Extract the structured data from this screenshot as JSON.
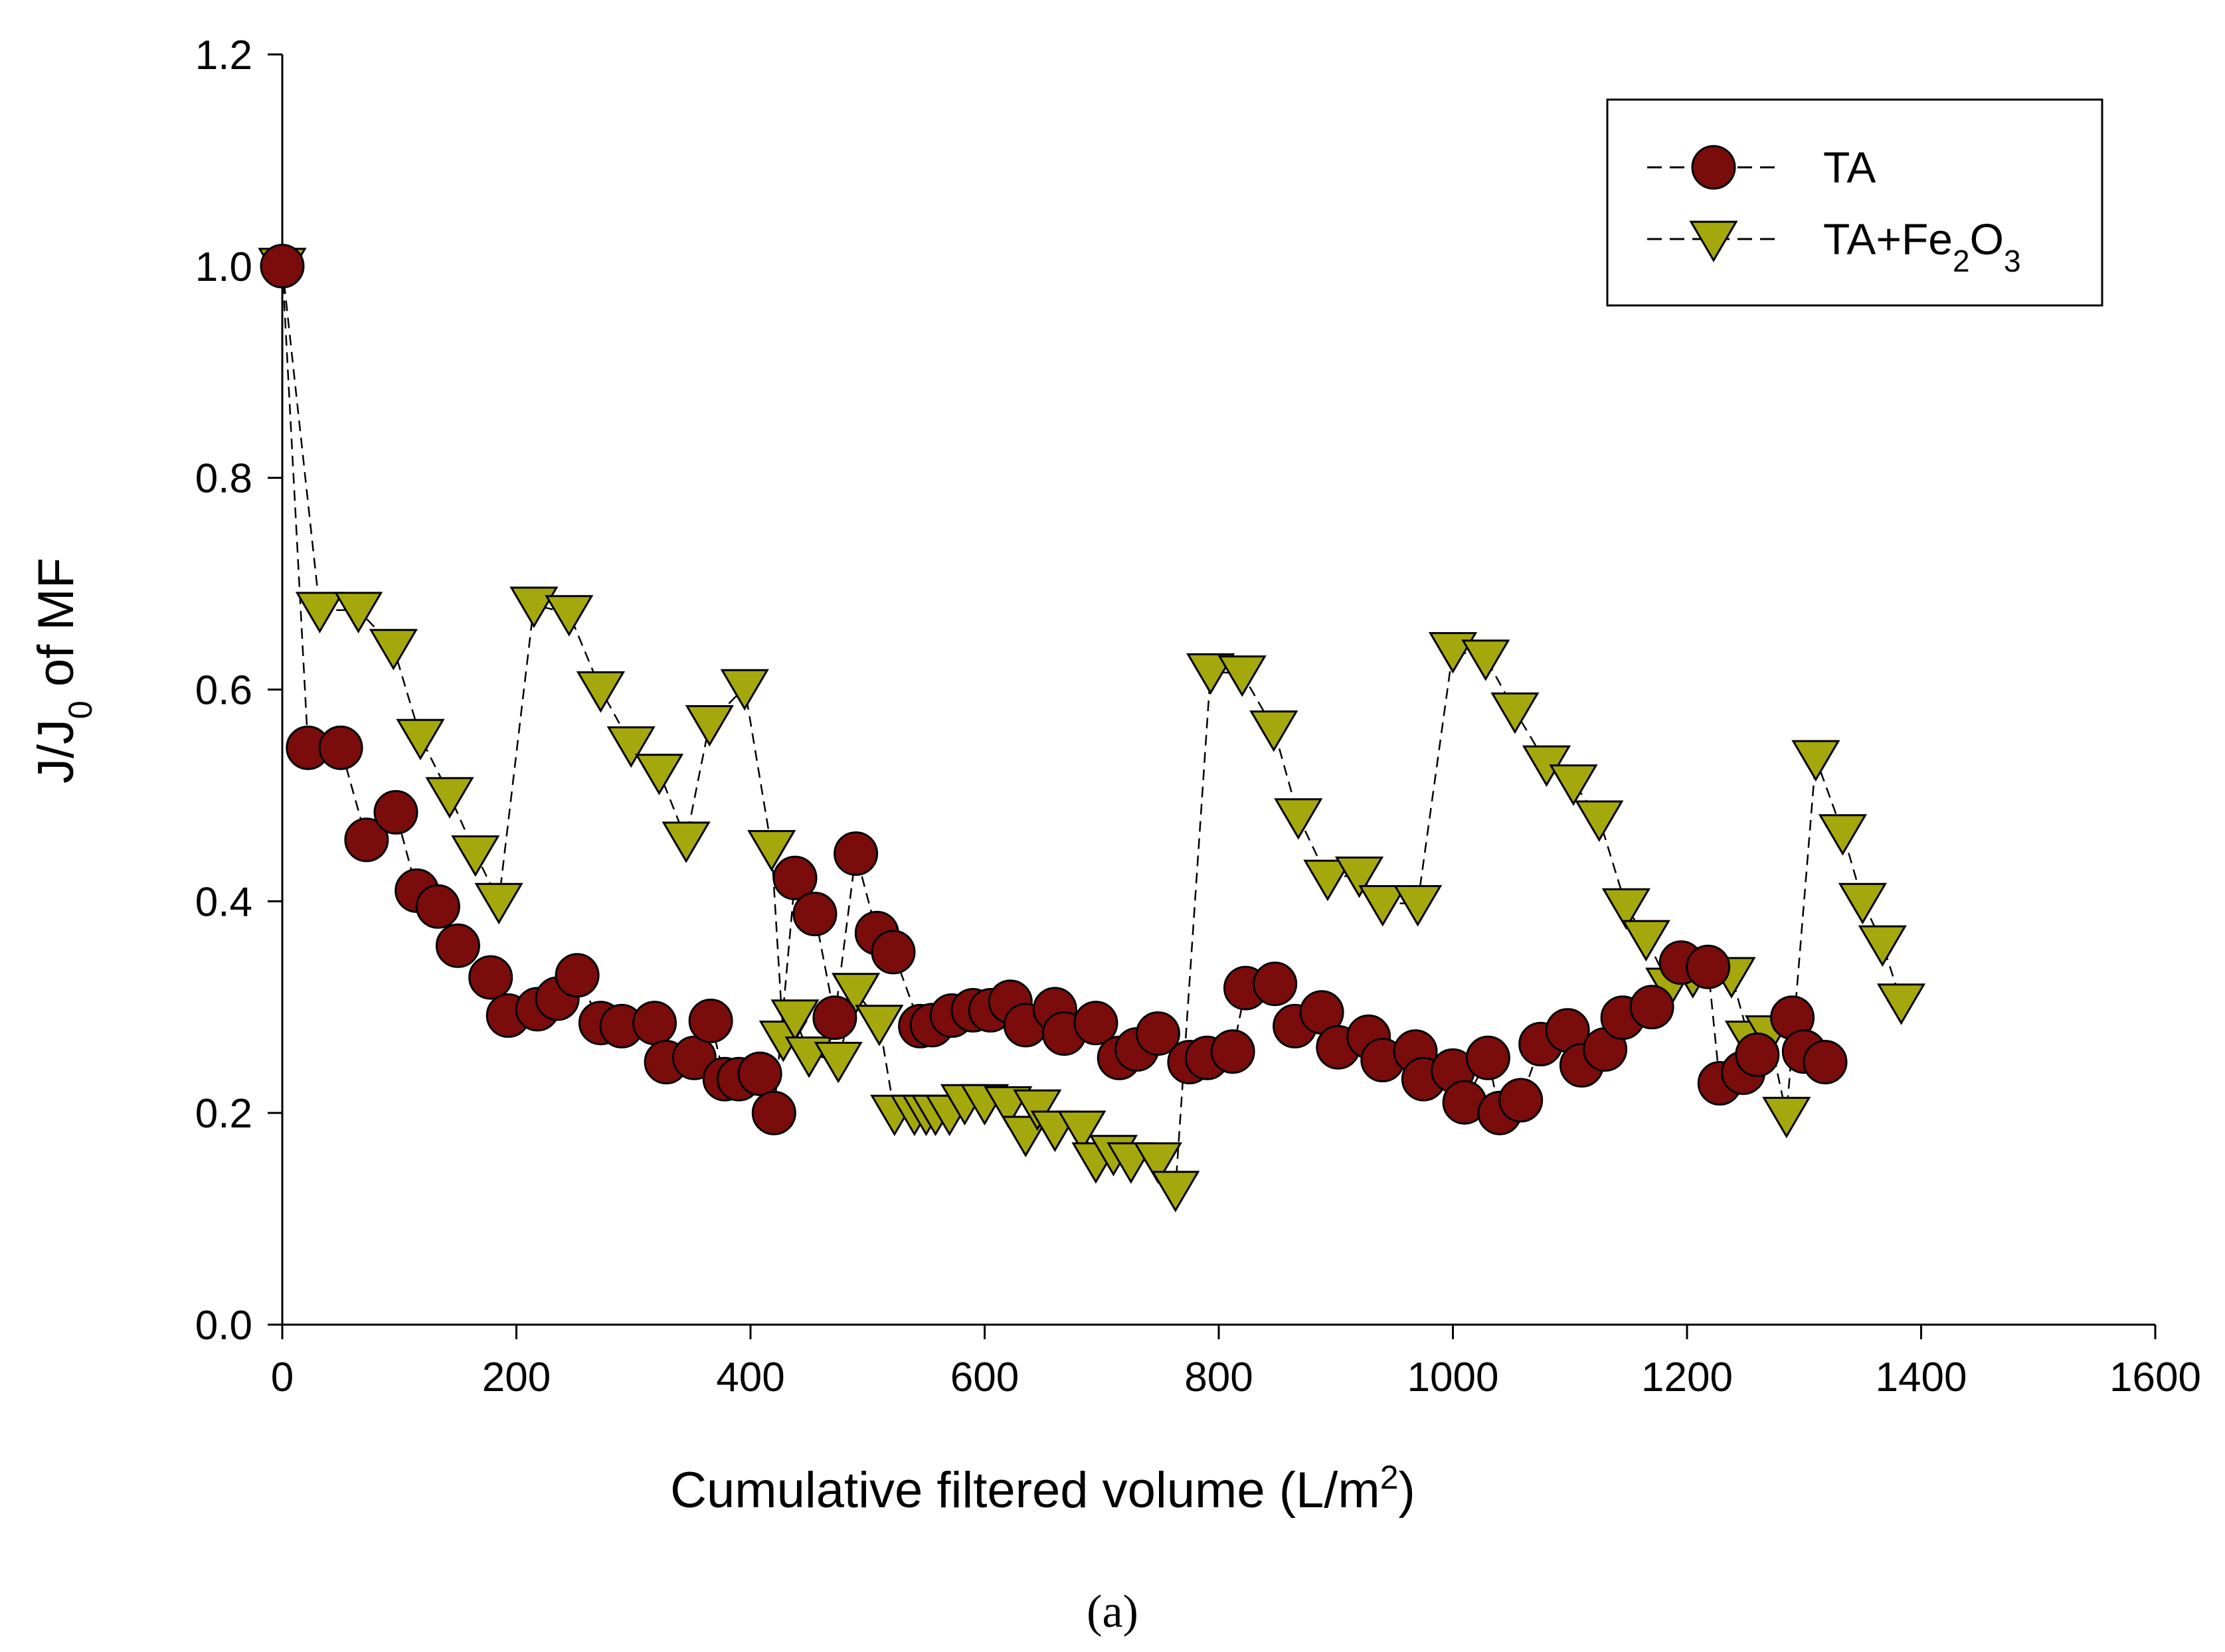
{
  "chart_data": {
    "type": "scatter",
    "title": "",
    "xlabel": "Cumulative filtered volume (L/m²)",
    "xlabel_main": "Cumulative filtered volume (L/m",
    "xlabel_sup": "2",
    "xlabel_end": ")",
    "ylabel": "J/J0 of MF",
    "ylabel_main": "J/J",
    "ylabel_sub": "0",
    "ylabel_end": " of MF",
    "xlim": [
      0,
      1600
    ],
    "ylim": [
      0,
      1.2
    ],
    "xticks": [
      "0",
      "200",
      "400",
      "600",
      "800",
      "1000",
      "1200",
      "1400",
      "1600"
    ],
    "yticks": [
      "0.0",
      "0.2",
      "0.4",
      "0.6",
      "0.8",
      "1.0",
      "1.2"
    ],
    "legend_position": "top-right",
    "caption": "(a)",
    "series": [
      {
        "name": "TA",
        "marker": "circle",
        "color": "#7a0c0c",
        "x": [
          0,
          22,
          50,
          72,
          97,
          115,
          133,
          150,
          178,
          193,
          218,
          235,
          252,
          272,
          290,
          318,
          328,
          352,
          366,
          378,
          390,
          408,
          420,
          438,
          455,
          472,
          490,
          508,
          522,
          545,
          555,
          572,
          590,
          605,
          622,
          635,
          660,
          668,
          695,
          715,
          730,
          748,
          775,
          790,
          812,
          823,
          848,
          865,
          888,
          902,
          928,
          940,
          968,
          975,
          1000,
          1010,
          1030,
          1040,
          1058,
          1075,
          1098,
          1110,
          1130,
          1145,
          1170,
          1195,
          1218,
          1228,
          1248,
          1260,
          1290,
          1300,
          1318
        ],
        "y": [
          1.0,
          0.545,
          0.545,
          0.458,
          0.484,
          0.41,
          0.395,
          0.358,
          0.328,
          0.292,
          0.298,
          0.308,
          0.33,
          0.285,
          0.282,
          0.285,
          0.248,
          0.252,
          0.287,
          0.232,
          0.232,
          0.237,
          0.2,
          0.422,
          0.388,
          0.29,
          0.445,
          0.37,
          0.352,
          0.282,
          0.283,
          0.292,
          0.297,
          0.297,
          0.305,
          0.283,
          0.298,
          0.275,
          0.285,
          0.252,
          0.26,
          0.275,
          0.248,
          0.252,
          0.258,
          0.318,
          0.322,
          0.282,
          0.295,
          0.262,
          0.272,
          0.25,
          0.258,
          0.232,
          0.24,
          0.21,
          0.252,
          0.2,
          0.212,
          0.265,
          0.278,
          0.245,
          0.26,
          0.29,
          0.3,
          0.342,
          0.338,
          0.228,
          0.238,
          0.255,
          0.29,
          0.258,
          0.248
        ]
      },
      {
        "name": "TA+Fe2O3",
        "name_main": "TA+Fe",
        "name_sub1": "2",
        "name_mid": "O",
        "name_sub2": "3",
        "marker": "triangle-down",
        "color": "#a5a80c",
        "x": [
          0,
          32,
          65,
          95,
          118,
          143,
          165,
          185,
          215,
          245,
          272,
          298,
          322,
          345,
          365,
          395,
          418,
          428,
          438,
          450,
          475,
          490,
          510,
          523,
          540,
          550,
          558,
          570,
          583,
          600,
          620,
          635,
          645,
          660,
          683,
          695,
          710,
          725,
          748,
          763,
          793,
          820,
          847,
          868,
          893,
          920,
          940,
          970,
          1000,
          1028,
          1053,
          1080,
          1103,
          1125,
          1148,
          1165,
          1185,
          1205,
          1238,
          1253,
          1270,
          1285,
          1310,
          1333,
          1350,
          1367,
          1383
        ],
        "y": [
          1.0,
          0.675,
          0.675,
          0.64,
          0.555,
          0.5,
          0.445,
          0.4,
          0.68,
          0.672,
          0.6,
          0.548,
          0.522,
          0.458,
          0.568,
          0.602,
          0.45,
          0.27,
          0.29,
          0.255,
          0.25,
          0.315,
          0.285,
          0.2,
          0.2,
          0.2,
          0.2,
          0.2,
          0.21,
          0.21,
          0.208,
          0.18,
          0.205,
          0.185,
          0.185,
          0.155,
          0.162,
          0.155,
          0.155,
          0.128,
          0.617,
          0.615,
          0.563,
          0.48,
          0.422,
          0.425,
          0.398,
          0.398,
          0.637,
          0.63,
          0.58,
          0.53,
          0.512,
          0.478,
          0.395,
          0.365,
          0.32,
          0.33,
          0.33,
          0.27,
          0.275,
          0.198,
          0.535,
          0.465,
          0.4,
          0.36,
          0.305
        ]
      }
    ]
  }
}
